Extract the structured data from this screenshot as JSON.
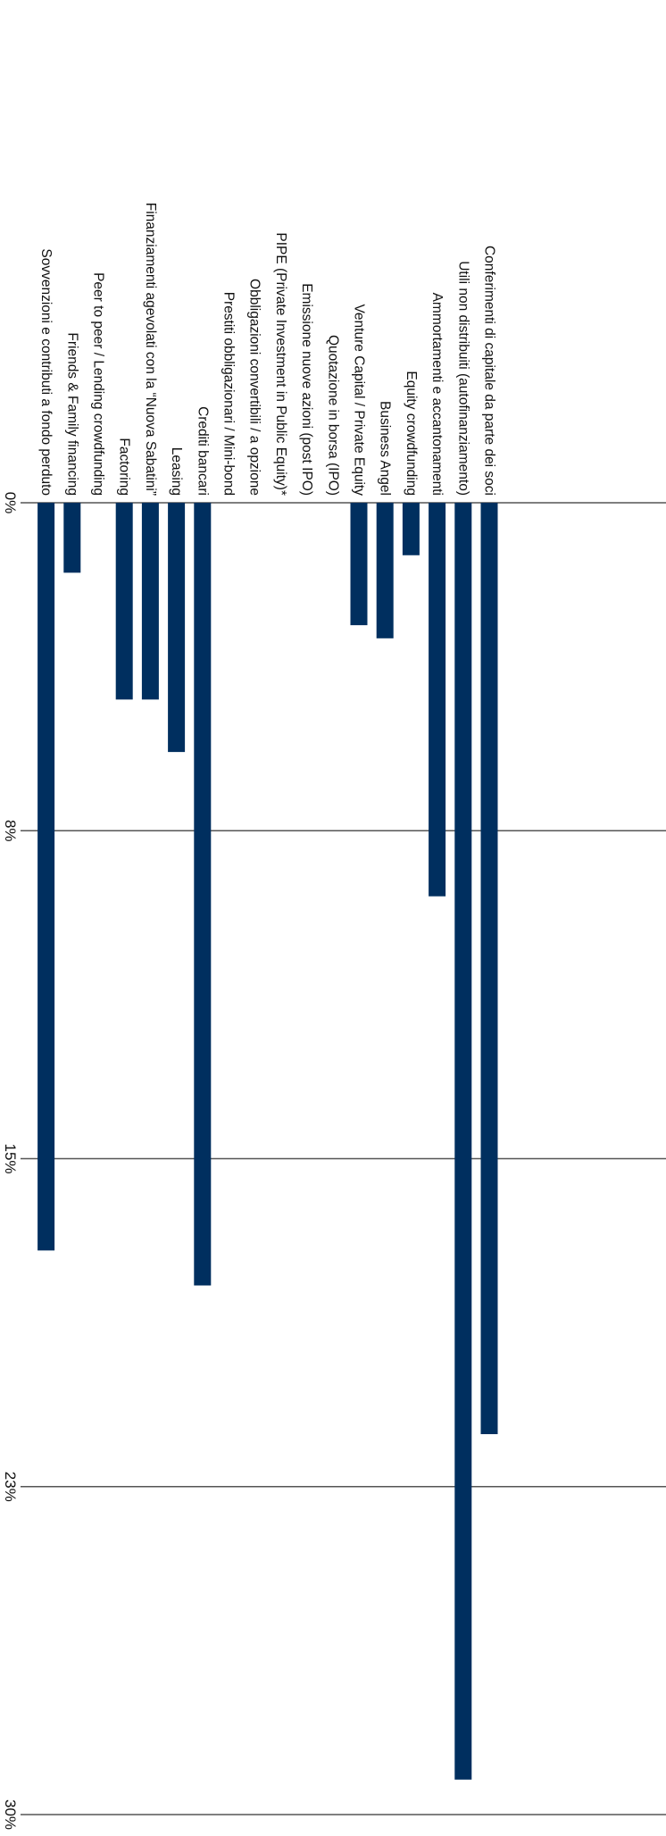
{
  "chart_data": {
    "type": "bar",
    "orientation": "vertical-rotated",
    "title": "",
    "xlabel": "",
    "ylabel": "",
    "ylim": [
      0,
      30
    ],
    "grid": true,
    "legend": "none",
    "colors": {
      "bar": "#002f5f",
      "grid": "#555555",
      "text": "#111111"
    },
    "tick_labels": [
      "0%",
      "8%",
      "15%",
      "23%",
      "30%"
    ],
    "tick_values": [
      0,
      7.5,
      15,
      22.5,
      30
    ],
    "categories": [
      "Conferimenti di capitale da parte dei soci",
      "Utili non distribuiti (autofinanziamento)",
      "Ammortamenti e accantonamenti",
      "Equity crowdfunding",
      "Business Angel",
      "Venture Capital / Private Equity",
      "Quotazione in borsa (IPO)",
      "Emissione nuove azioni (post IPO)",
      "PIPE (Private Investment in Public Equity)*",
      "Obbligazioni convertibili / a opzione",
      "Prestiti obbligazionari / Mini-bond",
      "Crediti bancari",
      "Leasing",
      "Finanziamenti agevolati con la “Nuova Sabatini”",
      "Factoring",
      "Peer to peer / Lending crowdfunding",
      "Friends & Family financing",
      "Sovvenzioni e contributi a fondo perduto"
    ],
    "values": [
      21.3,
      29.2,
      9.0,
      1.2,
      3.1,
      2.8,
      0,
      0,
      0,
      0,
      0,
      17.9,
      5.7,
      4.5,
      4.5,
      0,
      1.6,
      17.1
    ]
  }
}
